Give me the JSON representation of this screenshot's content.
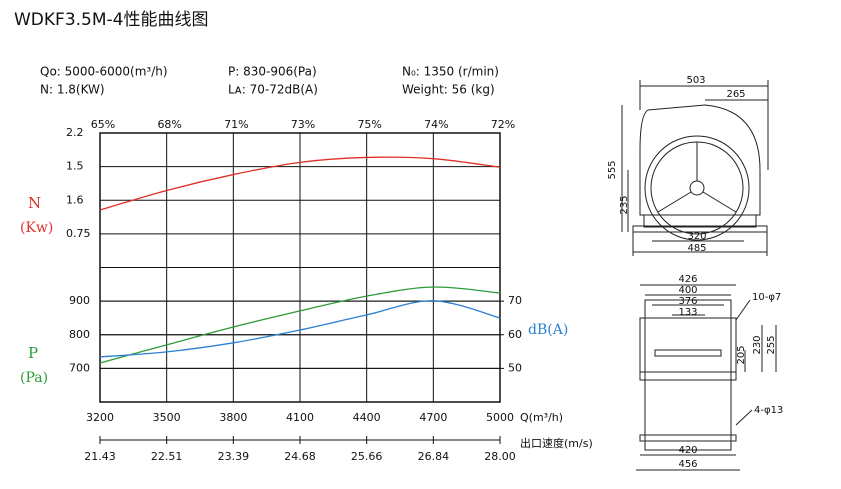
{
  "chart_data": {
    "type": "line",
    "title": "WDKF3.5M-4性能曲线图",
    "specs": [
      "Qo: 5000-6000(m³/h)",
      "N: 1.8(KW)",
      "P: 830-906(Pa)",
      "Lᴀ: 70-72dB(A)",
      "N₀: 1350 (r/min)",
      "Weight: 56 (kg)"
    ],
    "x": [
      3200,
      3500,
      3800,
      4100,
      4400,
      4700,
      5000
    ],
    "xlim": [
      3200,
      5000
    ],
    "xticks": [
      3200,
      3500,
      3800,
      4100,
      4400,
      4700,
      5000
    ],
    "xlabel": "Q(m³/h)",
    "x2label": "出口速度(m/s)",
    "x2ticks": [
      "21.43",
      "22.51",
      "23.39",
      "24.68",
      "25.66",
      "26.84",
      "28.00"
    ],
    "efficiency": [
      {
        "value": 65,
        "label": "65%"
      },
      {
        "value": 68,
        "label": "68%"
      },
      {
        "value": 71,
        "label": "71%"
      },
      {
        "value": 73,
        "label": "73%"
      },
      {
        "value": 75,
        "label": "75%"
      },
      {
        "value": 74,
        "label": "74%"
      },
      {
        "value": 72,
        "label": "72%"
      }
    ],
    "ylim": [
      600,
      1400
    ],
    "yticks": [
      700,
      800,
      900
    ],
    "ylabel": [
      "P",
      "(Pa)"
    ],
    "y2lim": [
      40,
      120
    ],
    "y2ticks": [
      50,
      60,
      70
    ],
    "y2label": "dB(A)",
    "y3lim": [
      0,
      2.2
    ],
    "y3ticks": [
      2.2,
      1.5,
      1.6,
      0.75
    ],
    "y3label": [
      "N",
      "(Kw)"
    ],
    "grid": true,
    "series": [
      {
        "name": "N",
        "color": "#e0302a",
        "axis": "y3",
        "values": [
          1.57,
          1.73,
          1.86,
          1.96,
          2.0,
          1.99,
          1.92
        ]
      },
      {
        "name": "P",
        "color": "#2f9a38",
        "axis": "y",
        "values": [
          716,
          770,
          823,
          871,
          915,
          942,
          924
        ]
      },
      {
        "name": "dB(A)",
        "color": "#2a7fd0",
        "axis": "y2",
        "values": [
          53.4,
          54.9,
          57.6,
          61.4,
          65.9,
          70.1,
          65.0
        ]
      }
    ]
  },
  "drawing": {
    "front": [
      "503",
      "265",
      "555",
      "235",
      "320",
      "485"
    ],
    "side": [
      "426",
      "400",
      "376",
      "133",
      "10-φ7",
      "205",
      "230",
      "255",
      "4-φ13",
      "420",
      "456"
    ]
  }
}
